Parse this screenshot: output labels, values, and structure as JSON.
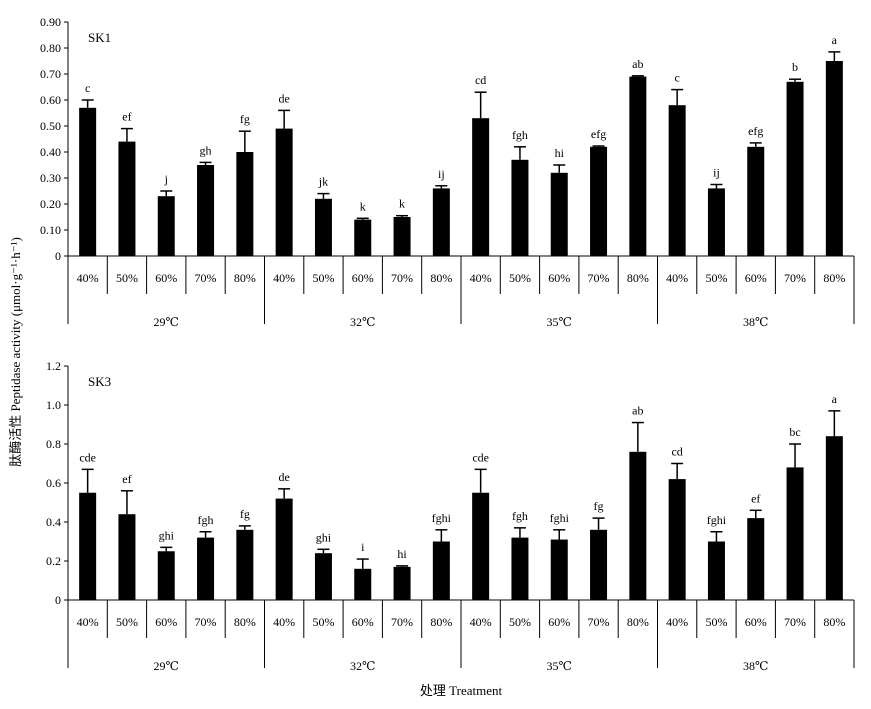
{
  "chart_data": [
    {
      "type": "bar",
      "title": "SK1",
      "ylabel": "肽酶活性 Peptidase activity (μmol·g⁻¹·h⁻¹)",
      "ylim": [
        0,
        0.9
      ],
      "yticks": [
        "0",
        "0.10",
        "0.20",
        "0.30",
        "0.40",
        "0.50",
        "0.60",
        "0.70",
        "0.80",
        "0.90"
      ],
      "groups": [
        "29℃",
        "32℃",
        "35℃",
        "38℃"
      ],
      "categories": [
        "40%",
        "50%",
        "60%",
        "70%",
        "80%"
      ],
      "bars": [
        {
          "group": "29℃",
          "category": "40%",
          "value": 0.57,
          "error": 0.03,
          "letter": "c"
        },
        {
          "group": "29℃",
          "category": "50%",
          "value": 0.44,
          "error": 0.05,
          "letter": "ef"
        },
        {
          "group": "29℃",
          "category": "60%",
          "value": 0.23,
          "error": 0.02,
          "letter": "j"
        },
        {
          "group": "29℃",
          "category": "70%",
          "value": 0.35,
          "error": 0.01,
          "letter": "gh"
        },
        {
          "group": "29℃",
          "category": "80%",
          "value": 0.4,
          "error": 0.08,
          "letter": "fg"
        },
        {
          "group": "32℃",
          "category": "40%",
          "value": 0.49,
          "error": 0.07,
          "letter": "de"
        },
        {
          "group": "32℃",
          "category": "50%",
          "value": 0.22,
          "error": 0.02,
          "letter": "jk"
        },
        {
          "group": "32℃",
          "category": "60%",
          "value": 0.14,
          "error": 0.005,
          "letter": "k"
        },
        {
          "group": "32℃",
          "category": "70%",
          "value": 0.15,
          "error": 0.005,
          "letter": "k"
        },
        {
          "group": "32℃",
          "category": "80%",
          "value": 0.26,
          "error": 0.01,
          "letter": "ij"
        },
        {
          "group": "35℃",
          "category": "40%",
          "value": 0.53,
          "error": 0.1,
          "letter": "cd"
        },
        {
          "group": "35℃",
          "category": "50%",
          "value": 0.37,
          "error": 0.05,
          "letter": "fgh"
        },
        {
          "group": "35℃",
          "category": "60%",
          "value": 0.32,
          "error": 0.03,
          "letter": "hi"
        },
        {
          "group": "35℃",
          "category": "70%",
          "value": 0.42,
          "error": 0.003,
          "letter": "efg"
        },
        {
          "group": "35℃",
          "category": "80%",
          "value": 0.69,
          "error": 0.003,
          "letter": "ab"
        },
        {
          "group": "38℃",
          "category": "40%",
          "value": 0.58,
          "error": 0.06,
          "letter": "c"
        },
        {
          "group": "38℃",
          "category": "50%",
          "value": 0.26,
          "error": 0.015,
          "letter": "ij"
        },
        {
          "group": "38℃",
          "category": "60%",
          "value": 0.42,
          "error": 0.015,
          "letter": "efg"
        },
        {
          "group": "38℃",
          "category": "70%",
          "value": 0.67,
          "error": 0.01,
          "letter": "b"
        },
        {
          "group": "38℃",
          "category": "80%",
          "value": 0.75,
          "error": 0.035,
          "letter": "a"
        }
      ]
    },
    {
      "type": "bar",
      "title": "SK3",
      "ylim": [
        0,
        1.2
      ],
      "yticks": [
        "0",
        "0.2",
        "0.4",
        "0.6",
        "0.8",
        "1.0",
        "1.2"
      ],
      "groups": [
        "29℃",
        "32℃",
        "35℃",
        "38℃"
      ],
      "categories": [
        "40%",
        "50%",
        "60%",
        "70%",
        "80%"
      ],
      "xlabel": "处理 Treatment",
      "bars": [
        {
          "group": "29℃",
          "category": "40%",
          "value": 0.55,
          "error": 0.12,
          "letter": "cde"
        },
        {
          "group": "29℃",
          "category": "50%",
          "value": 0.44,
          "error": 0.12,
          "letter": "ef"
        },
        {
          "group": "29℃",
          "category": "60%",
          "value": 0.25,
          "error": 0.02,
          "letter": "ghi"
        },
        {
          "group": "29℃",
          "category": "70%",
          "value": 0.32,
          "error": 0.03,
          "letter": "fgh"
        },
        {
          "group": "29℃",
          "category": "80%",
          "value": 0.36,
          "error": 0.02,
          "letter": "fg"
        },
        {
          "group": "32℃",
          "category": "40%",
          "value": 0.52,
          "error": 0.05,
          "letter": "de"
        },
        {
          "group": "32℃",
          "category": "50%",
          "value": 0.24,
          "error": 0.02,
          "letter": "ghi"
        },
        {
          "group": "32℃",
          "category": "60%",
          "value": 0.16,
          "error": 0.05,
          "letter": "i"
        },
        {
          "group": "32℃",
          "category": "70%",
          "value": 0.17,
          "error": 0.005,
          "letter": "hi"
        },
        {
          "group": "32℃",
          "category": "80%",
          "value": 0.3,
          "error": 0.06,
          "letter": "fghi"
        },
        {
          "group": "35℃",
          "category": "40%",
          "value": 0.55,
          "error": 0.12,
          "letter": "cde"
        },
        {
          "group": "35℃",
          "category": "50%",
          "value": 0.32,
          "error": 0.05,
          "letter": "fgh"
        },
        {
          "group": "35℃",
          "category": "60%",
          "value": 0.31,
          "error": 0.05,
          "letter": "fghi"
        },
        {
          "group": "35℃",
          "category": "70%",
          "value": 0.36,
          "error": 0.06,
          "letter": "fg"
        },
        {
          "group": "35℃",
          "category": "80%",
          "value": 0.76,
          "error": 0.15,
          "letter": "ab"
        },
        {
          "group": "38℃",
          "category": "40%",
          "value": 0.62,
          "error": 0.08,
          "letter": "cd"
        },
        {
          "group": "38℃",
          "category": "50%",
          "value": 0.3,
          "error": 0.05,
          "letter": "fghi"
        },
        {
          "group": "38℃",
          "category": "60%",
          "value": 0.42,
          "error": 0.04,
          "letter": "ef"
        },
        {
          "group": "38℃",
          "category": "70%",
          "value": 0.68,
          "error": 0.12,
          "letter": "bc"
        },
        {
          "group": "38℃",
          "category": "80%",
          "value": 0.84,
          "error": 0.13,
          "letter": "a"
        }
      ]
    }
  ],
  "colors": {
    "bar": "#000000",
    "axis": "#000000",
    "background": "#ffffff"
  }
}
